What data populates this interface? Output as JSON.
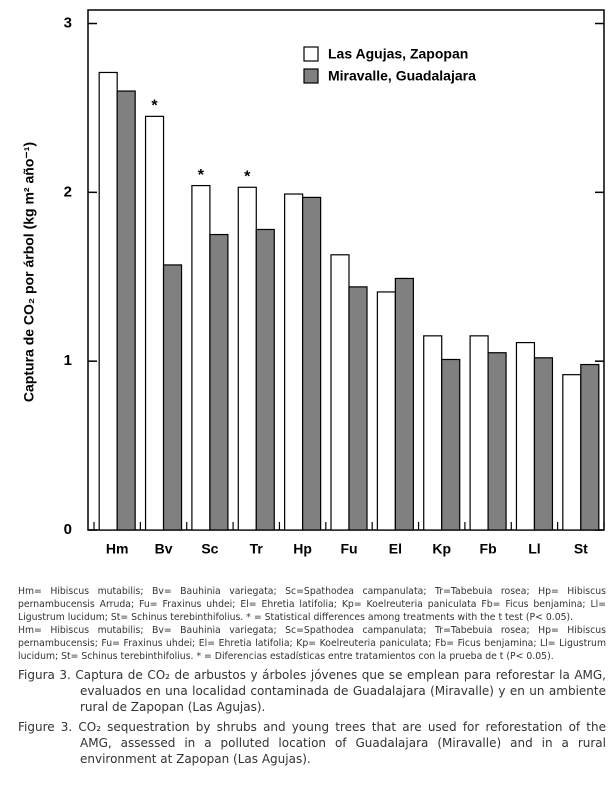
{
  "chart_data": {
    "type": "bar",
    "ylabel": "Captura de CO₂ por árbol (kg m² año⁻¹)",
    "categories": [
      "Hm",
      "Bv",
      "Sc",
      "Tr",
      "Hp",
      "Fu",
      "El",
      "Kp",
      "Fb",
      "Ll",
      "St"
    ],
    "series": [
      {
        "name": "Las Agujas, Zapopan",
        "color": "#ffffff",
        "values": [
          2.71,
          2.45,
          2.04,
          2.03,
          1.99,
          1.63,
          1.41,
          1.15,
          1.15,
          1.11,
          0.92
        ]
      },
      {
        "name": "Miravalle, Guadalajara",
        "color": "#808080",
        "values": [
          2.6,
          1.57,
          1.75,
          1.78,
          1.97,
          1.44,
          1.49,
          1.01,
          1.05,
          1.02,
          0.98
        ]
      }
    ],
    "annotations": [
      {
        "text": "*",
        "category": "Bv"
      },
      {
        "text": "*",
        "category": "Sc"
      },
      {
        "text": "*",
        "category": "Tr"
      }
    ],
    "ylim": [
      0,
      3.08
    ],
    "yticks": [
      0,
      1,
      2,
      3
    ],
    "legend": "top-right"
  },
  "caption": {
    "abbrev_en": "Hm= Hibiscus mutabilis; Bv= Bauhinia variegata; Sc=Spathodea campanulata; Tr=Tabebuia rosea; Hp= Hibiscus pernambucensis Arruda; Fu= Fraxinus uhdei; El= Ehretia latifolia; Kp= Koelreuteria paniculata Fb= Ficus benjamina; Ll= Ligustrum lucidum; St= Schinus terebinthifolius. * = Statistical differences among treatments with the t test (P< 0.05).",
    "abbrev_es": "Hm= Hibiscus mutabilis; Bv= Bauhinia variegata; Sc=Spathodea campanulata; Tr=Tabebuia rosea; Hp= Hibiscus pernambucensis; Fu= Fraxinus uhdei; El= Ehretia latifolia; Kp= Koelreuteria paniculata; Fb= Ficus benjamina; Ll= Ligustrum lucidum; St= Schinus terebinthifolius. * = Diferencias estadísticas entre tratamientos con la prueba de t (P< 0.05).",
    "figura": "Figura 3. Captura de CO₂ de arbustos y árboles jóvenes que se emplean para reforestar la AMG, evaluados en una localidad contaminada de Guadalajara (Miravalle) y en un ambiente rural de Zapopan (Las Agujas).",
    "figure": "Figure 3. CO₂ sequestration by shrubs and young trees that are used for reforestation of the AMG, assessed in a polluted location of Guadalajara (Miravalle) and in a rural environment at Zapopan (Las Agujas)."
  }
}
